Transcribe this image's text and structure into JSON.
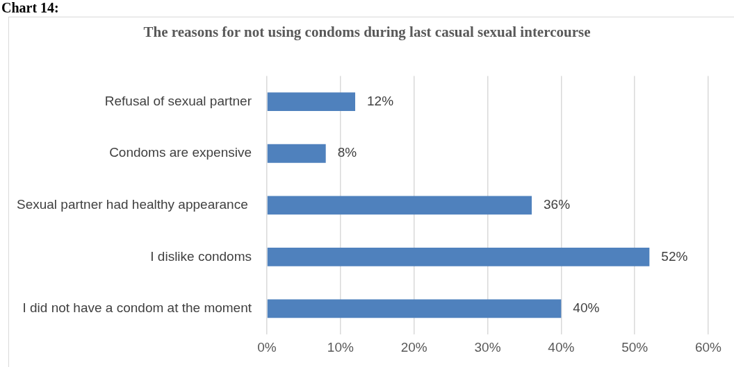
{
  "chart_data": {
    "type": "bar",
    "orientation": "horizontal",
    "title": "The reasons for not using condoms during last casual sexual intercourse",
    "annotations": [
      "Chart 14:"
    ],
    "categories": [
      "Refusal of sexual partner",
      "Condoms are expensive",
      "Sexual partner had healthy appearance ",
      "I dislike condoms",
      "I did not have a condom at the moment"
    ],
    "values": [
      12,
      8,
      36,
      52,
      40
    ],
    "value_labels": [
      "12%",
      "8%",
      "36%",
      "52%",
      "40%"
    ],
    "color": "#4f81bd",
    "xlim": [
      0,
      60
    ],
    "xticks": [
      {
        "value": 0,
        "label": "0%"
      },
      {
        "value": 10,
        "label": "10%"
      },
      {
        "value": 20,
        "label": "20%"
      },
      {
        "value": 30,
        "label": "30%"
      },
      {
        "value": 40,
        "label": "40%"
      },
      {
        "value": 50,
        "label": "50%"
      },
      {
        "value": 60,
        "label": "60%"
      }
    ],
    "grid": "x",
    "legend": false
  }
}
